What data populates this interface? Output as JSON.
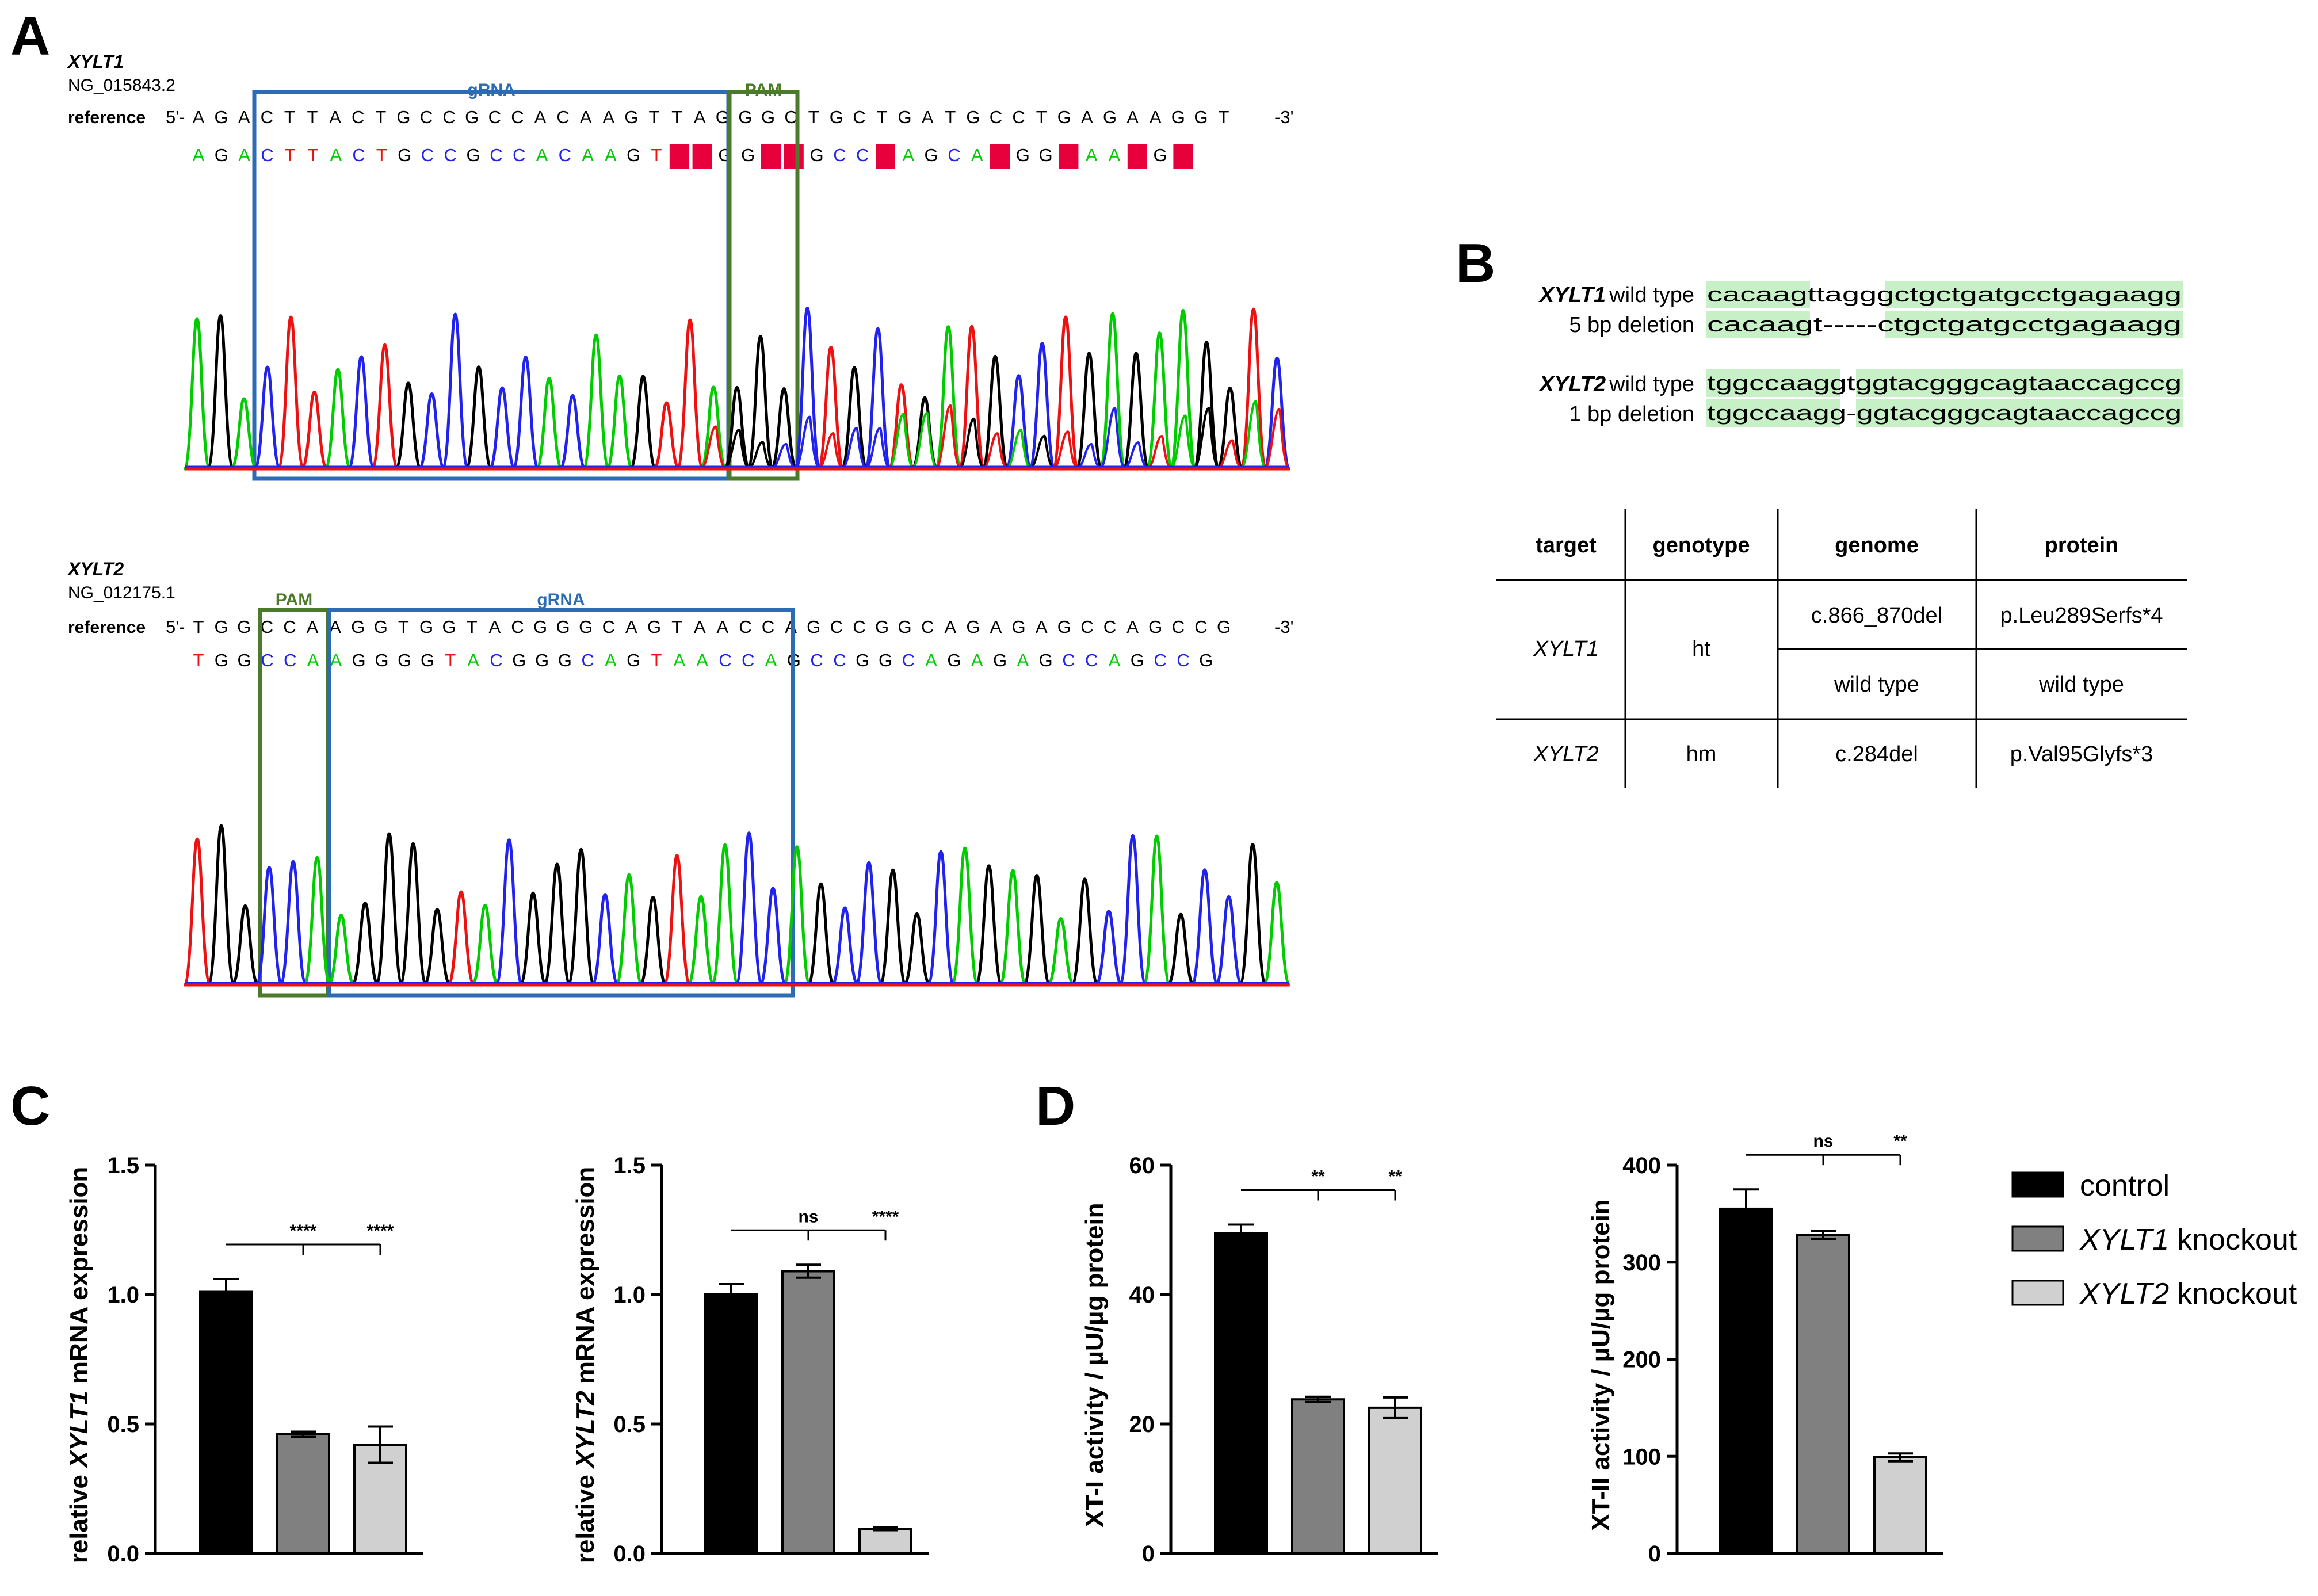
{
  "panel_labels": [
    "A",
    "B",
    "C",
    "D"
  ],
  "colors": {
    "A": "#00cc00",
    "C": "#2222ee",
    "G": "#000000",
    "T": "#ee1111",
    "gRNA_box": "#2b6cb5",
    "PAM_box": "#4a7a2a",
    "mismatch": "#e8003c",
    "highlight": "#c7f0c7",
    "control": "#000000",
    "xylt1_ko": "#808080",
    "xylt2_ko": "#d0d0d0"
  },
  "panelA": {
    "xylt1": {
      "gene": "XYLT1",
      "accession": "NG_015843.2",
      "ref_label": "reference",
      "ref_prefix": "5'-",
      "ref_suffix": "-3'",
      "ref_bases": "AGACTTACTGCCGCCACAAGTTAGGGCTGCTGATGCCTGAGAAGGT",
      "called_bases": "AGACTTACTGCCGCCACAAGTNNGGNNGCCNAGCANGGNAANGN",
      "gRNA_label": "gRNA",
      "pam_label": "PAM"
    },
    "xylt2": {
      "gene": "XYLT2",
      "accession": "NG_012175.1",
      "ref_label": "reference",
      "ref_prefix": "5'-",
      "ref_suffix": "-3'",
      "ref_bases": "TGGCCAAGGTGGTACGGGCAGTAACCAGCCGGCAGAGAGCCAGCCG",
      "called_bases": "TGGCCAAGGGGTACGGGCAGTAACCAGCCGGCAGAGAGCCAGCCG",
      "gRNA_label": "gRNA",
      "pam_label": "PAM"
    }
  },
  "panelB": {
    "alignments": [
      {
        "gene": "XYLT1",
        "wt_label": "wild type",
        "del_label": "5 bp deletion",
        "wt_seq": "cacaagttagggctgctgatgcctgagaagg",
        "del_seq": "cacaagt-----ctgctgatgcctgagaagg"
      },
      {
        "gene": "XYLT2",
        "wt_label": "wild type",
        "del_label": "1 bp deletion",
        "wt_seq": "tggccaaggtggtacgggcagtaaccagccg",
        "del_seq": "tggccaagg-ggtacgggcagtaaccagccg"
      }
    ],
    "table": {
      "headers": [
        "target",
        "genotype",
        "genome",
        "protein"
      ],
      "rows": [
        {
          "target": "XYLT1",
          "genotype": "ht",
          "alleles": [
            {
              "genome": "c.866_870del",
              "protein": "p.Leu289Serfs*4"
            },
            {
              "genome": "wild type",
              "protein": "wild type"
            }
          ]
        },
        {
          "target": "XYLT2",
          "genotype": "hm",
          "alleles": [
            {
              "genome": "c.284del",
              "protein": "p.Val95Glyfs*3"
            }
          ]
        }
      ]
    }
  },
  "legend": [
    {
      "label": "control",
      "gene": ""
    },
    {
      "label": "knockout",
      "gene": "XYLT1"
    },
    {
      "label": "knockout",
      "gene": "XYLT2"
    }
  ],
  "chart_data": [
    {
      "type": "bar",
      "panel": "C",
      "ylabel_pre": "relative ",
      "ylabel_gene": "XYLT1",
      "ylabel_post": " mRNA expression",
      "categories": [
        "control",
        "XYLT1 knockout",
        "XYLT2 knockout"
      ],
      "values": [
        1.01,
        0.46,
        0.42
      ],
      "errors": [
        0.05,
        0.01,
        0.07
      ],
      "ylim": [
        0,
        1.5
      ],
      "yticks": [
        "0.0",
        "0.5",
        "1.0",
        "1.5"
      ],
      "ytick_values": [
        0,
        0.5,
        1.0,
        1.5
      ],
      "significance": [
        "****",
        "****"
      ]
    },
    {
      "type": "bar",
      "panel": "C",
      "ylabel_pre": "relative ",
      "ylabel_gene": "XYLT2",
      "ylabel_post": " mRNA expression",
      "categories": [
        "control",
        "XYLT1 knockout",
        "XYLT2 knockout"
      ],
      "values": [
        1.0,
        1.09,
        0.095
      ],
      "errors": [
        0.04,
        0.025,
        0.005
      ],
      "ylim": [
        0,
        1.5
      ],
      "yticks": [
        "0.0",
        "0.5",
        "1.0",
        "1.5"
      ],
      "ytick_values": [
        0,
        0.5,
        1.0,
        1.5
      ],
      "significance": [
        "ns",
        "****"
      ]
    },
    {
      "type": "bar",
      "panel": "D",
      "ylabel_pre": "XT-I activity / µU/µg protein",
      "ylabel_gene": "",
      "ylabel_post": "",
      "categories": [
        "control",
        "XYLT1 knockout",
        "XYLT2 knockout"
      ],
      "values": [
        49.5,
        23.8,
        22.5
      ],
      "errors": [
        1.3,
        0.4,
        1.6
      ],
      "ylim": [
        0,
        60
      ],
      "yticks": [
        "0",
        "20",
        "40",
        "60"
      ],
      "ytick_values": [
        0,
        20,
        40,
        60
      ],
      "significance": [
        "**",
        "**"
      ]
    },
    {
      "type": "bar",
      "panel": "D",
      "ylabel_pre": "XT-II activity / µU/µg protein",
      "ylabel_gene": "",
      "ylabel_post": "",
      "categories": [
        "control",
        "XYLT1 knockout",
        "XYLT2 knockout"
      ],
      "values": [
        355,
        328,
        99
      ],
      "errors": [
        20,
        4,
        4
      ],
      "ylim": [
        0,
        400
      ],
      "yticks": [
        "0",
        "100",
        "200",
        "300",
        "400"
      ],
      "ytick_values": [
        0,
        100,
        200,
        300,
        400
      ],
      "significance": [
        "ns",
        "**"
      ]
    }
  ]
}
